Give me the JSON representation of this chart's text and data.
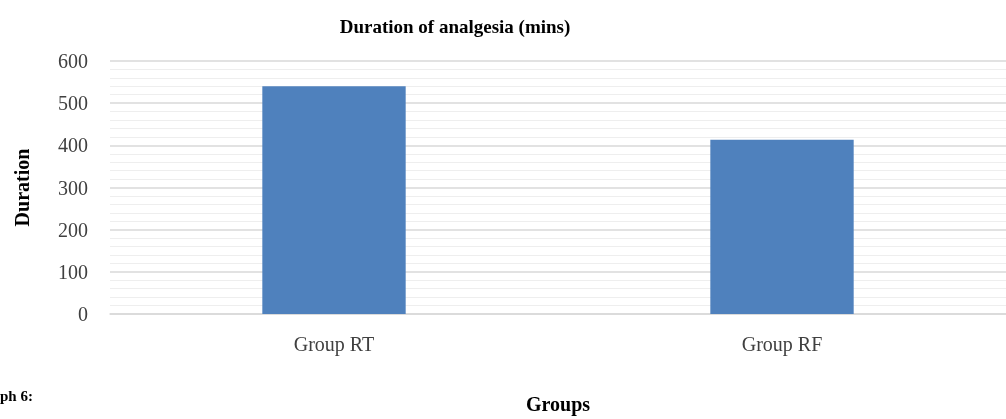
{
  "chart_data": {
    "type": "bar",
    "title": "Duration of analgesia (mins)",
    "xlabel": "Groups",
    "ylabel": "Duration",
    "categories": [
      "Group RT",
      "Group RF"
    ],
    "values": [
      540,
      413
    ],
    "color": "#4f81bd",
    "ylim": [
      0,
      600
    ],
    "yticks": [
      0,
      100,
      200,
      300,
      400,
      500,
      600
    ],
    "grid": true,
    "annotations": [
      "ph 6:"
    ]
  }
}
